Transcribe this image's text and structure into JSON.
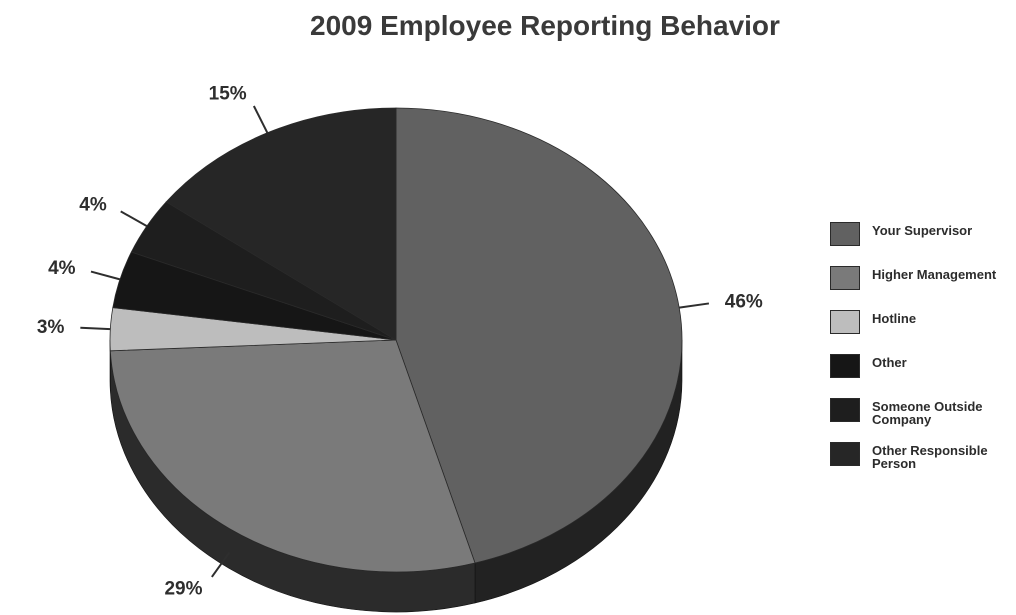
{
  "chart_data": {
    "type": "pie",
    "title": "2009 Employee Reporting Behavior",
    "slices": [
      {
        "name": "Your Supervisor",
        "value": 46,
        "label": "46%",
        "color": "#616161"
      },
      {
        "name": "Higher Management",
        "value": 29,
        "label": "29%",
        "color": "#7a7a7a"
      },
      {
        "name": "Hotline",
        "value": 3,
        "label": "3%",
        "color": "#bdbdbd"
      },
      {
        "name": "Other",
        "value": 4,
        "label": "4%",
        "color": "#161616"
      },
      {
        "name": "Someone Outside Company",
        "value": 4,
        "label": "4%",
        "color": "#1e1e1e"
      },
      {
        "name": "Other Responsible Person",
        "value": 15,
        "label": "15%",
        "color": "#262626"
      }
    ],
    "legend": {
      "position": "right",
      "entries": [
        "Your Supervisor",
        "Higher Management",
        "Hotline",
        "Other",
        "Someone Outside Company",
        "Other Responsible Person"
      ]
    },
    "style": "3d-tilted"
  }
}
